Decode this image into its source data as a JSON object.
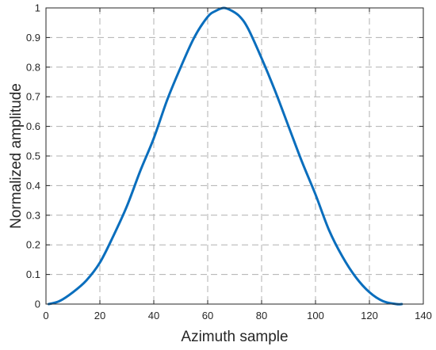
{
  "chart_data": {
    "type": "line",
    "title": "",
    "xlabel": "Azimuth sample",
    "ylabel": "Normalized amplitude",
    "xlim": [
      0,
      140
    ],
    "ylim": [
      0,
      1
    ],
    "xticks": [
      0,
      20,
      40,
      60,
      80,
      100,
      120,
      140
    ],
    "yticks": [
      0,
      0.1,
      0.2,
      0.3,
      0.4,
      0.5,
      0.6,
      0.7,
      0.8,
      0.9,
      1
    ],
    "grid": true,
    "colors": {
      "series": "#0a6ebd",
      "grid": "#b0b0b0",
      "axis": "#262626"
    },
    "series": [
      {
        "x": [
          1,
          5,
          10,
          15,
          20,
          25,
          30,
          35,
          40,
          45,
          50,
          55,
          60,
          63,
          66,
          69,
          72,
          75,
          80,
          85,
          90,
          95,
          100,
          105,
          110,
          115,
          120,
          125,
          130,
          132
        ],
        "y": [
          0.0,
          0.01,
          0.04,
          0.08,
          0.14,
          0.23,
          0.33,
          0.45,
          0.56,
          0.69,
          0.8,
          0.9,
          0.97,
          0.99,
          1.0,
          0.99,
          0.97,
          0.93,
          0.83,
          0.72,
          0.6,
          0.48,
          0.37,
          0.25,
          0.16,
          0.09,
          0.04,
          0.01,
          0.0,
          0.0
        ]
      }
    ]
  }
}
